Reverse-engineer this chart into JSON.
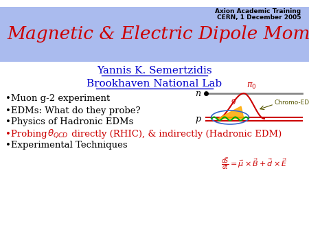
{
  "title": "Magnetic & Electric Dipole Moments.",
  "title_color": "#cc0000",
  "title_bg_color": "#aabbee",
  "header_right_line1": "Axion Academic Training",
  "header_right_line2": "CERN, 1 December 2005",
  "author": "Yannis K. Semertzidis",
  "institution": "Brookhaven National Lab",
  "author_color": "#0000cc",
  "bullet1": "•Muon g-2 experiment",
  "bullet2": "•EDMs: What do they probe?",
  "bullet3": "•Physics of Hadronic EDMs",
  "bullet4_start": "•Probing ",
  "bullet4_theta": "$\\theta_{QCD}$",
  "bullet4_end": " directly (RHIC), & indirectly (Hadronic EDM)",
  "bullet5": "•Experimental Techniques",
  "black": "#000000",
  "red": "#cc0000",
  "blue": "#0000cc",
  "bg_color": "#ffffff"
}
